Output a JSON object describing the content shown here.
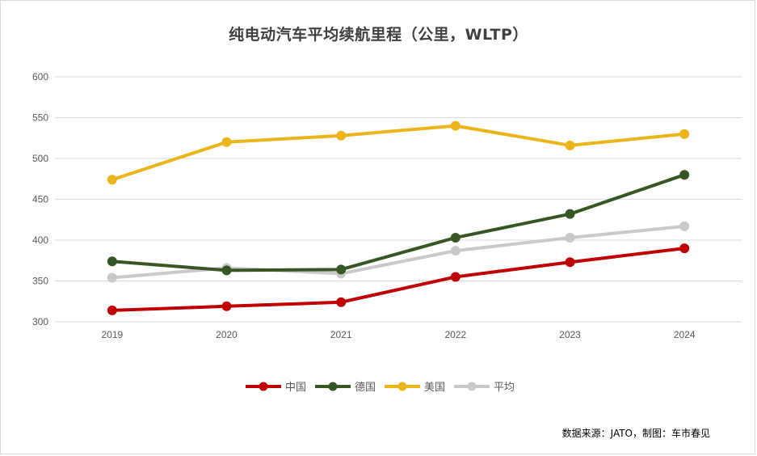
{
  "source_note": "数据来源：JATO，制图：车市春见",
  "colors": {
    "中国": "#c00000",
    "德国": "#375623",
    "美国": "#ebb519",
    "平均": "#c9c9c9",
    "grid": "#d9d9d9",
    "axis": "#d9d9d9",
    "text": "#595959"
  },
  "chart_data": {
    "type": "line",
    "title": "纯电动汽车平均续航里程（公里，WLTP）",
    "xlabel": "",
    "ylabel": "",
    "ylim": [
      300,
      600
    ],
    "yticks": [
      300,
      350,
      400,
      450,
      500,
      550,
      600
    ],
    "grid": true,
    "legend_position": "bottom",
    "categories": [
      "2019",
      "2020",
      "2021",
      "2022",
      "2023",
      "2024"
    ],
    "series": [
      {
        "name": "中国",
        "values": [
          314,
          319,
          324,
          355,
          373,
          390
        ]
      },
      {
        "name": "德国",
        "values": [
          374,
          363,
          364,
          403,
          432,
          480
        ]
      },
      {
        "name": "美国",
        "values": [
          474,
          520,
          528,
          540,
          516,
          530
        ]
      },
      {
        "name": "平均",
        "values": [
          354,
          366,
          359,
          387,
          403,
          417
        ]
      }
    ],
    "draw_order": [
      "平均",
      "美国",
      "德国",
      "中国"
    ]
  }
}
